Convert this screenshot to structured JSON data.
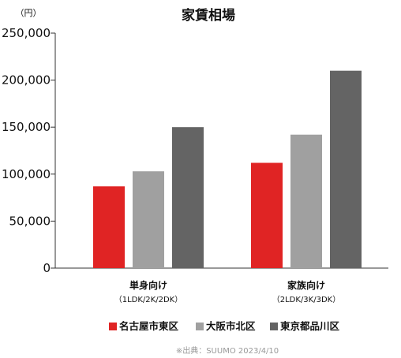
{
  "chart_data": {
    "type": "bar",
    "title": "家賃相場",
    "unit": "（円）",
    "categories": [
      "単身向け",
      "家族向け"
    ],
    "category_sublabels": [
      "（1LDK/2K/2DK）",
      "（2LDK/3K/3DK）"
    ],
    "series": [
      {
        "name": "名古屋市東区",
        "color": "#e02424",
        "values": [
          87000,
          112000
        ]
      },
      {
        "name": "大阪市北区",
        "color": "#a0a0a0",
        "values": [
          103000,
          142000
        ]
      },
      {
        "name": "東京都品川区",
        "color": "#646464",
        "values": [
          150000,
          210000
        ]
      }
    ],
    "ylim": [
      0,
      250000
    ],
    "yticks": [
      0,
      50000,
      100000,
      150000,
      200000,
      250000
    ],
    "ytick_labels": [
      "0",
      "50,000",
      "100,000",
      "150,000",
      "200,000",
      "250,000"
    ],
    "grid": false,
    "legend_position": "bottom",
    "source": "※出典：SUUMO 2023/4/10"
  }
}
